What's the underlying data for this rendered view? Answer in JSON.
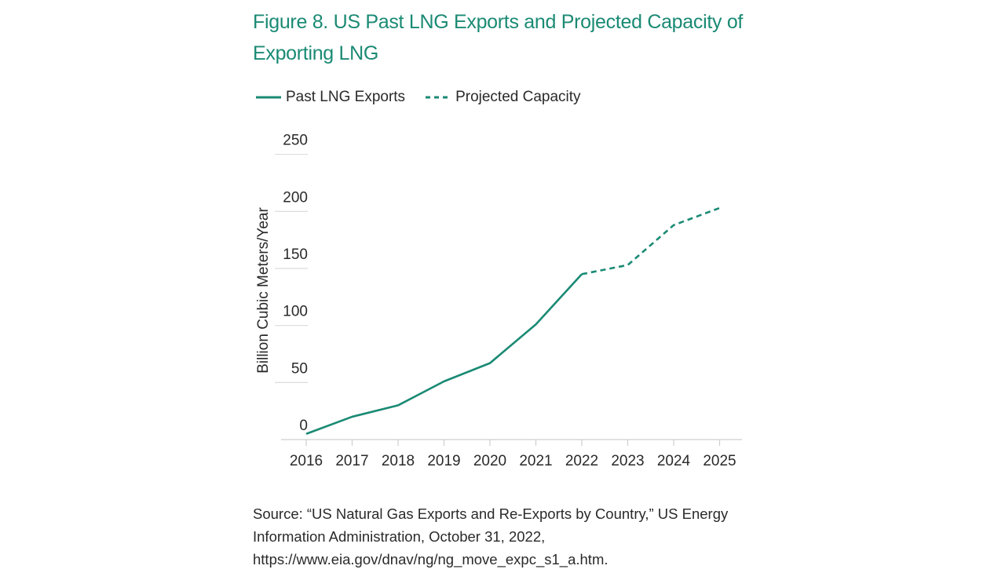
{
  "chart_data": {
    "type": "line",
    "title": "Figure 8. US Past LNG Exports and Projected Capacity of Exporting LNG",
    "xlabel": "",
    "ylabel": "Billion Cubic Meters/Year",
    "ylim": [
      0,
      250
    ],
    "yticks": [
      "0",
      "50",
      "100",
      "150",
      "200",
      "250"
    ],
    "categories": [
      "2016",
      "2017",
      "2018",
      "2019",
      "2020",
      "2021",
      "2022",
      "2023",
      "2024",
      "2025"
    ],
    "grid": "horizontal",
    "legend_position": "top-left",
    "series": [
      {
        "name": "Past LNG Exports",
        "style": "solid",
        "color": "#1a8a74",
        "x": [
          "2016",
          "2017",
          "2018",
          "2019",
          "2020",
          "2021",
          "2022"
        ],
        "values": [
          5,
          20,
          30,
          51,
          67,
          101,
          145
        ]
      },
      {
        "name": "Projected Capacity",
        "style": "dashed",
        "color": "#1a8a74",
        "x": [
          "2022",
          "2023",
          "2024",
          "2025"
        ],
        "values": [
          145,
          153,
          188,
          203
        ]
      }
    ]
  },
  "source": "Source: “US Natural Gas Exports and Re-Exports by Country,” US Energy Information Administration, October 31, 2022, https://www.eia.gov/dnav/ng/ng_move_expc_s1_a.htm."
}
